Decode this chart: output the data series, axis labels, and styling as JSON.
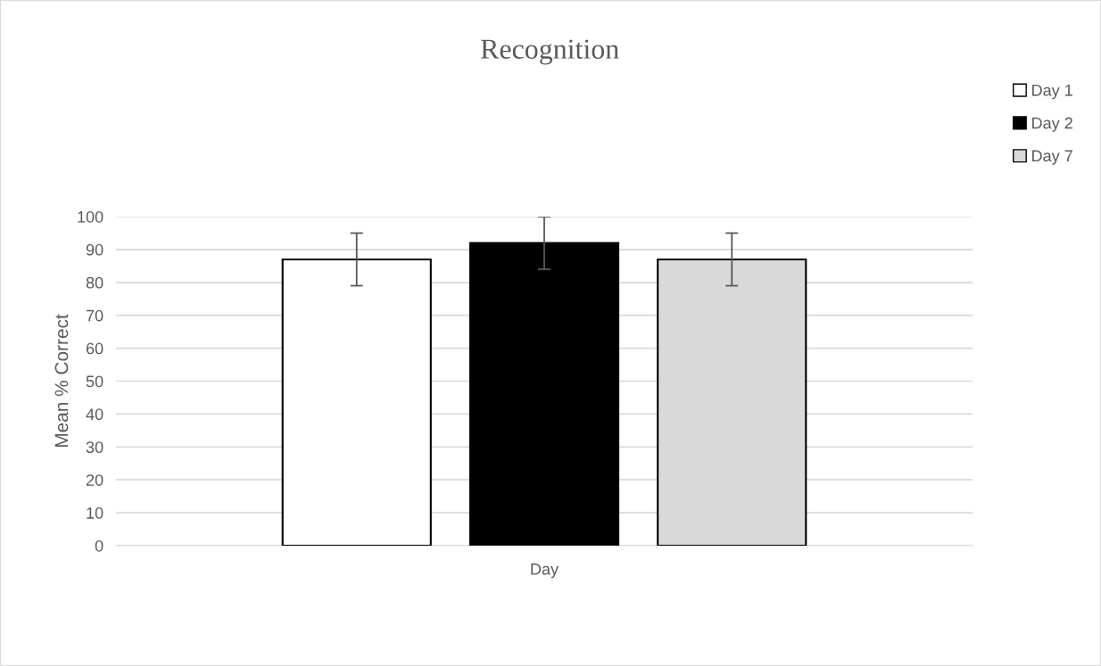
{
  "chart_data": {
    "type": "bar",
    "title": "Recognition",
    "xlabel": "Day",
    "ylabel": "Mean % Correct",
    "categories": [
      null
    ],
    "series": [
      {
        "name": "Day 1",
        "color": "#ffffff",
        "values": [
          87
        ],
        "errors": [
          8
        ]
      },
      {
        "name": "Day 2",
        "color": "#000000",
        "values": [
          92
        ],
        "errors": [
          8
        ]
      },
      {
        "name": "Day 7",
        "color": "#d9d9d9",
        "values": [
          87
        ],
        "errors": [
          8
        ]
      }
    ],
    "ylim": [
      0,
      100
    ],
    "yticks": [
      0,
      10,
      20,
      30,
      40,
      50,
      60,
      70,
      80,
      90,
      100
    ],
    "grid": "y",
    "legend": "top right"
  }
}
